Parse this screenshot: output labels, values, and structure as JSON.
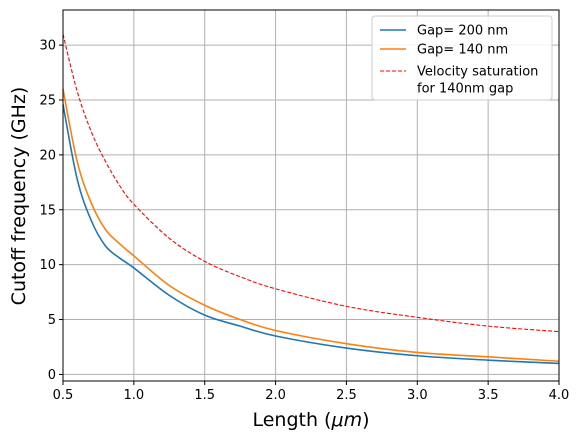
{
  "chart_data": {
    "type": "line",
    "title": "",
    "xlabel": "Length (",
    "xlabel_math": "μm",
    "xlabel_suffix": ")",
    "ylabel": "Cutoff frequency (GHz)",
    "xlim": [
      0.5,
      4.0
    ],
    "ylim": [
      -0.6,
      33.2
    ],
    "grid": true,
    "legend_position": "top-right",
    "x_ticks": [
      0.5,
      1.0,
      1.5,
      2.0,
      2.5,
      3.0,
      3.5,
      4.0
    ],
    "x_tick_labels": [
      "0.5",
      "1.0",
      "1.5",
      "2.0",
      "2.5",
      "3.0",
      "3.5",
      "4.0"
    ],
    "y_ticks": [
      0,
      5,
      10,
      15,
      20,
      25,
      30
    ],
    "y_tick_labels": [
      "0",
      "5",
      "10",
      "15",
      "20",
      "25",
      "30"
    ],
    "series": [
      {
        "name": "Gap= 200 nm",
        "color": "#1f77b4",
        "style": "solid",
        "x": [
          0.5,
          0.6,
          0.7,
          0.8,
          0.9,
          1.0,
          1.25,
          1.5,
          1.75,
          2.0,
          2.5,
          3.0,
          3.5,
          4.0
        ],
        "y": [
          24.6,
          17.8,
          14.0,
          11.7,
          10.6,
          9.7,
          7.2,
          5.4,
          4.4,
          3.5,
          2.4,
          1.7,
          1.3,
          1.0
        ]
      },
      {
        "name": "Gap= 140 nm",
        "color": "#ff7f0e",
        "style": "solid",
        "x": [
          0.5,
          0.6,
          0.7,
          0.8,
          0.9,
          1.0,
          1.25,
          1.5,
          1.75,
          2.0,
          2.5,
          3.0,
          3.5,
          4.0
        ],
        "y": [
          26.0,
          19.4,
          15.6,
          13.2,
          11.9,
          10.8,
          8.1,
          6.3,
          5.0,
          4.0,
          2.8,
          2.0,
          1.6,
          1.2
        ]
      },
      {
        "name": "Velocity saturation\nfor 140nm gap",
        "color": "#ff0000",
        "style": "dashed",
        "x": [
          0.5,
          0.6,
          0.7,
          0.8,
          0.9,
          1.0,
          1.25,
          1.5,
          1.75,
          2.0,
          2.5,
          3.0,
          3.5,
          4.0
        ],
        "y": [
          31.0,
          25.8,
          22.1,
          19.4,
          17.2,
          15.5,
          12.4,
          10.3,
          8.9,
          7.8,
          6.2,
          5.2,
          4.4,
          3.9
        ]
      }
    ]
  }
}
